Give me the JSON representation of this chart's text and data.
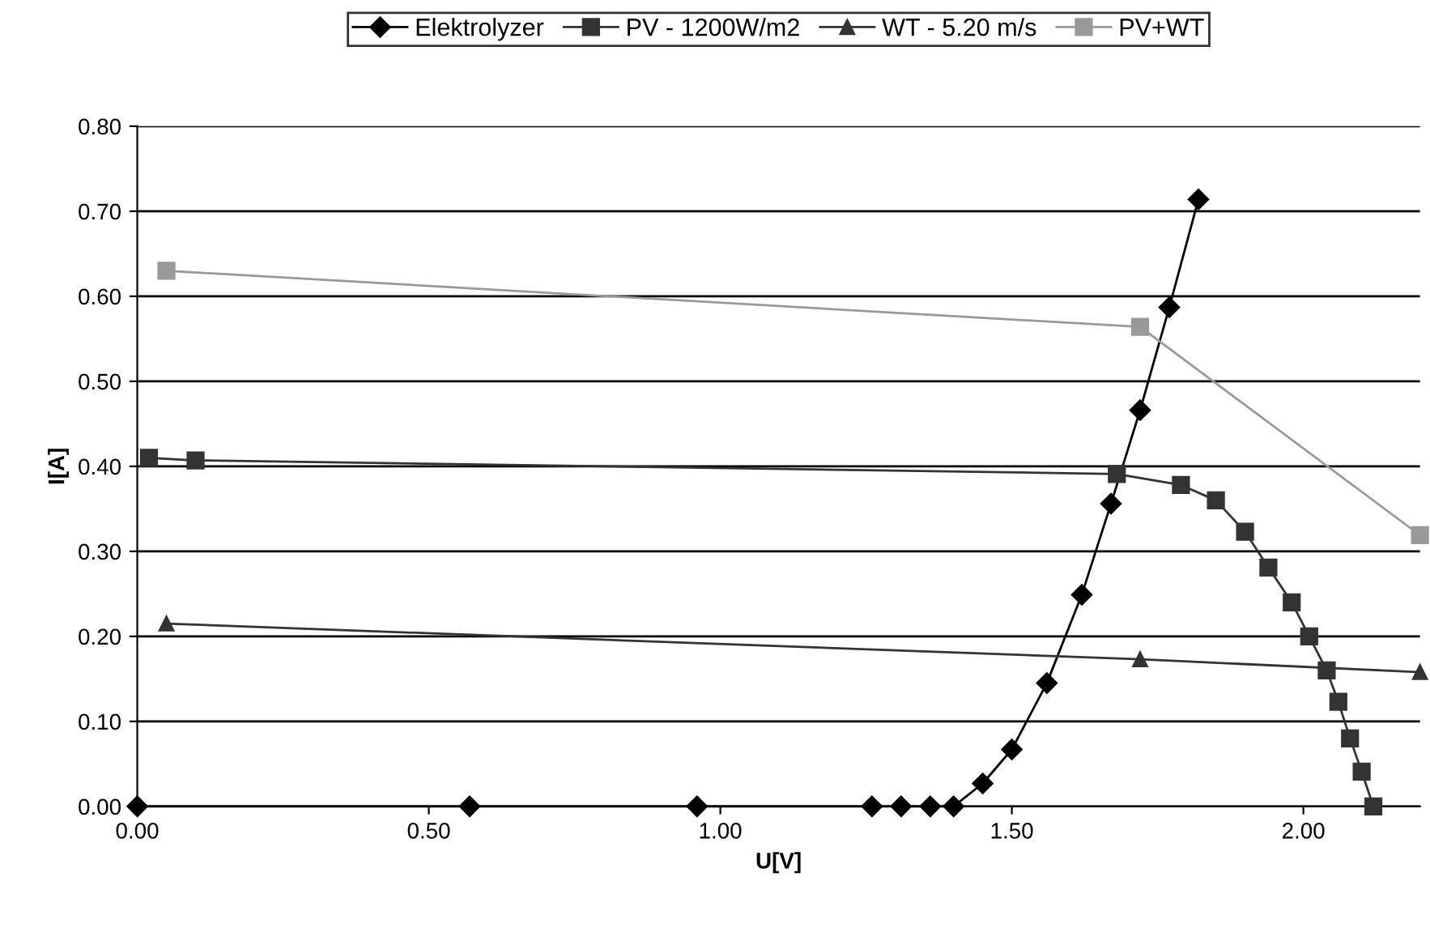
{
  "chart_data": {
    "type": "line",
    "xlabel": "U[V]",
    "ylabel": "I[A]",
    "legend": "top",
    "grid": "y",
    "xlim": [
      0,
      2.2
    ],
    "xticks": [
      {
        "value": 0,
        "label": "0.00"
      },
      {
        "value": 0.5,
        "label": "0.50"
      },
      {
        "value": 1.0,
        "label": "1.00"
      },
      {
        "value": 1.5,
        "label": "1.50"
      },
      {
        "value": 2.0,
        "label": "2.00"
      }
    ],
    "ylim": [
      0,
      0.8
    ],
    "yticks": [
      {
        "value": 0,
        "label": "0.00"
      },
      {
        "value": 0.1,
        "label": "0.10"
      },
      {
        "value": 0.2,
        "label": "0.20"
      },
      {
        "value": 0.3,
        "label": "0.30"
      },
      {
        "value": 0.4,
        "label": "0.40"
      },
      {
        "value": 0.5,
        "label": "0.50"
      },
      {
        "value": 0.6,
        "label": "0.60"
      },
      {
        "value": 0.7,
        "label": "0.70"
      },
      {
        "value": 0.8,
        "label": "0.80"
      }
    ],
    "series": [
      {
        "name": "Elektrolyzer",
        "color": "#000000",
        "marker": "diamond",
        "x": [
          0,
          0.57,
          0.96,
          1.26,
          1.31,
          1.36,
          1.4,
          1.45,
          1.5,
          1.56,
          1.62,
          1.67,
          1.72,
          1.77,
          1.82
        ],
        "values": [
          0,
          0,
          0,
          0,
          0,
          0,
          0,
          0.027,
          0.067,
          0.145,
          0.249,
          0.356,
          0.466,
          0.587,
          0.714
        ]
      },
      {
        "name": "PV - 1200W/m2",
        "color": "#333333",
        "marker": "square",
        "x": [
          0.02,
          0.1,
          1.68,
          1.79,
          1.85,
          1.9,
          1.94,
          1.98,
          2.01,
          2.04,
          2.06,
          2.08,
          2.1,
          2.12
        ],
        "values": [
          0.41,
          0.407,
          0.391,
          0.378,
          0.36,
          0.323,
          0.281,
          0.24,
          0.2,
          0.16,
          0.123,
          0.08,
          0.041,
          0.0
        ]
      },
      {
        "name": "WT - 5.20 m/s",
        "color": "#333333",
        "marker": "triangle",
        "x": [
          0.05,
          1.72,
          2.2
        ],
        "values": [
          0.215,
          0.173,
          0.158
        ]
      },
      {
        "name": "PV+WT",
        "color": "#999999",
        "marker": "square",
        "x": [
          0.05,
          1.72,
          2.2
        ],
        "values": [
          0.63,
          0.564,
          0.319
        ]
      }
    ]
  }
}
